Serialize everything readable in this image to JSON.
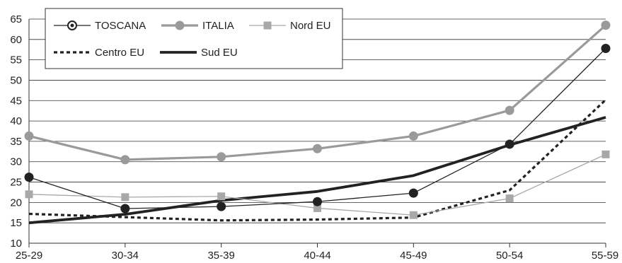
{
  "chart_data": {
    "type": "line",
    "categories": [
      "25-29",
      "30-34",
      "35-39",
      "40-44",
      "45-49",
      "50-54",
      "55-59"
    ],
    "ylim": [
      10,
      65
    ],
    "yticks": [
      10,
      15,
      20,
      25,
      30,
      35,
      40,
      45,
      50,
      55,
      60,
      65
    ],
    "grid": "horizontal",
    "legend_position": "top-left",
    "series": [
      {
        "name": "TOSCANA",
        "values": [
          26.2,
          18.5,
          19.0,
          20.2,
          22.3,
          34.3,
          57.8
        ],
        "color": "#222222",
        "marker": "circle",
        "style": "solid-thin"
      },
      {
        "name": "ITALIA",
        "values": [
          36.3,
          30.5,
          31.2,
          33.2,
          36.3,
          42.6,
          63.5
        ],
        "color": "#9a9a9a",
        "marker": "circle",
        "style": "solid"
      },
      {
        "name": "Nord EU",
        "values": [
          22.0,
          21.3,
          21.5,
          18.6,
          16.9,
          21.0,
          31.8
        ],
        "color": "#a8a8a8",
        "marker": "square",
        "style": "solid-thin"
      },
      {
        "name": "Centro EU",
        "values": [
          17.2,
          16.4,
          15.6,
          15.8,
          16.3,
          23.0,
          45.2
        ],
        "color": "#222222",
        "marker": "none",
        "style": "dashed"
      },
      {
        "name": "Sud EU",
        "values": [
          15.0,
          17.1,
          20.5,
          22.7,
          26.6,
          34.1,
          40.9
        ],
        "color": "#222222",
        "marker": "none",
        "style": "solid-thick"
      }
    ]
  }
}
